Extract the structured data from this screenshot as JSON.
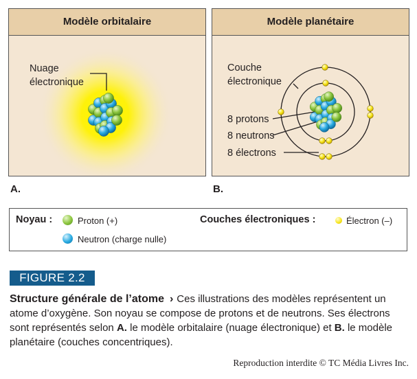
{
  "panels": {
    "a": {
      "title": "Modèle orbitalaire",
      "letter": "A.",
      "cloud_label": [
        "Nuage",
        "électronique"
      ]
    },
    "b": {
      "title": "Modèle planétaire",
      "letter": "B.",
      "shell_label": [
        "Couche",
        "électronique"
      ],
      "protons_label": "8 protons",
      "neutrons_label": "8 neutrons",
      "electrons_label": "8 électrons"
    }
  },
  "legend": {
    "nucleus_title": "Noyau :",
    "proton": "Proton (+)",
    "neutron": "Neutron (charge nulle)",
    "shells_title": "Couches électroniques :",
    "electron": "Électron (–)"
  },
  "figure": {
    "tag": "FIGURE 2.2",
    "caption_title": "Structure générale de l’atome",
    "caption_arrow": "›",
    "caption_body": "Ces illustrations des modèles représentent un atome d’oxygène. Son noyau se compose de protons et de neutrons. Ses électrons sont représentés selon",
    "caption_a_ref": "A.",
    "caption_a_text": "le modèle orbitalaire (nuage électronique) et",
    "caption_b_ref": "B.",
    "caption_b_text": "le modèle planétaire (couches concentriques)."
  },
  "credit": "Reproduction interdite © TC Média Livres Inc.",
  "colors": {
    "panel_bg": "#f4e6d3",
    "panel_header": "#e8cfa8",
    "cloud": "#fff200",
    "proton": "#8dc63f",
    "neutron": "#29abe2",
    "electron": "#f7e61a",
    "figure_tag": "#155c8c"
  }
}
